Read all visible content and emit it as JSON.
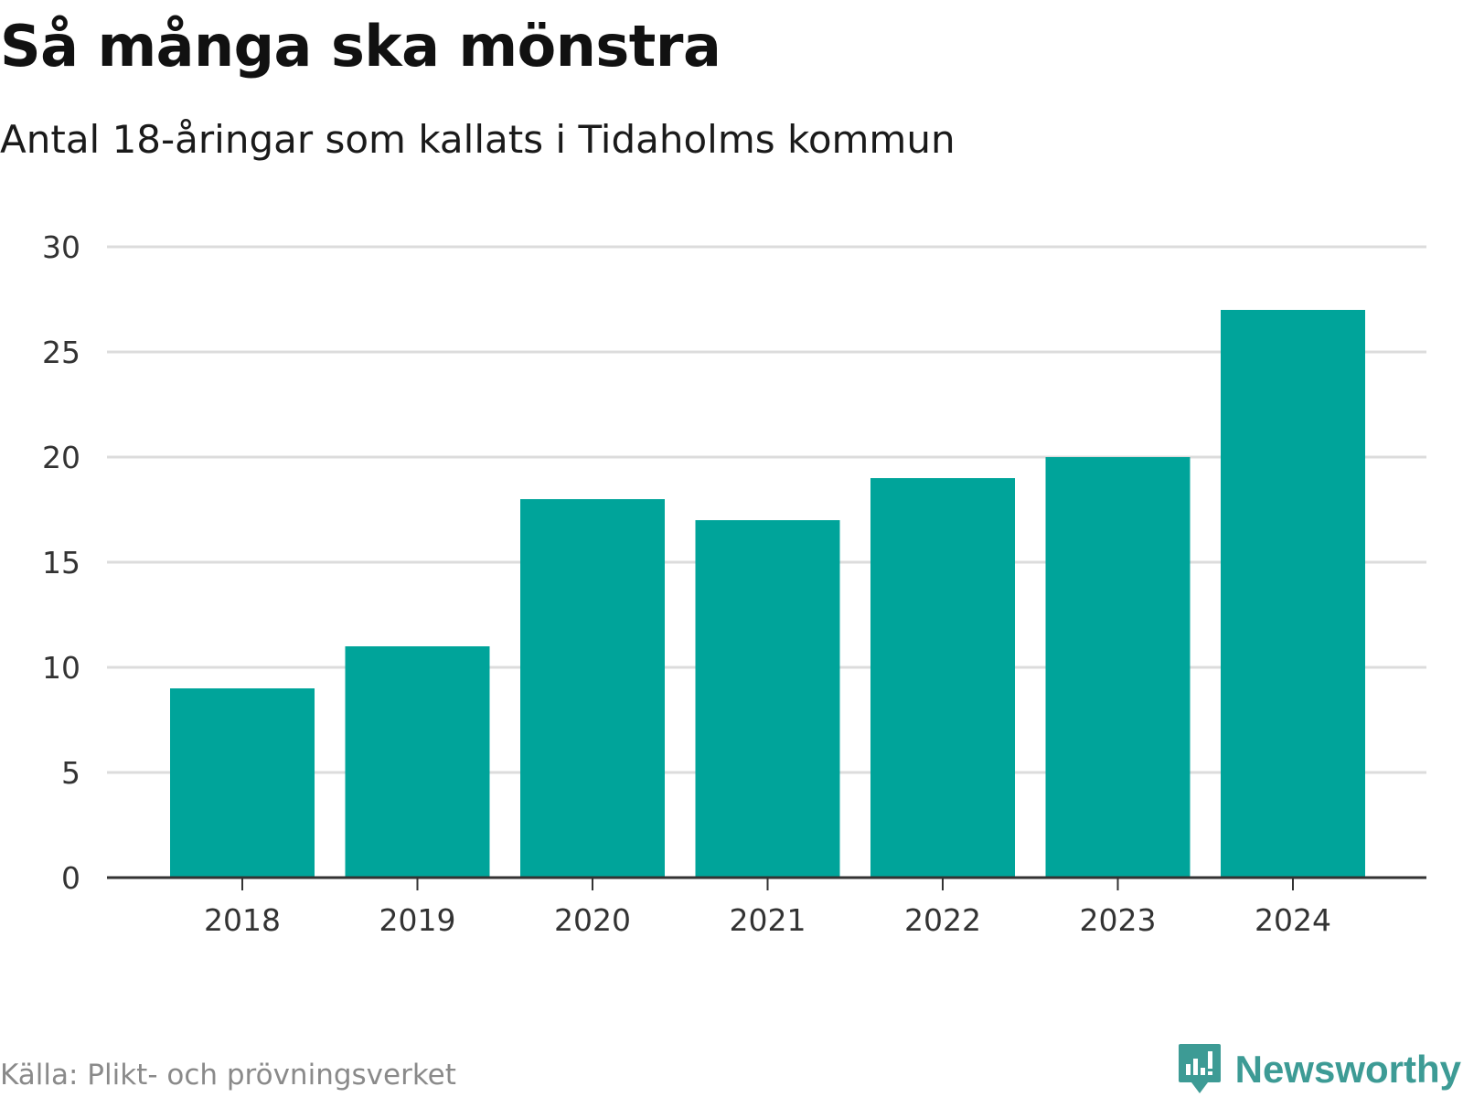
{
  "header": {
    "title": "Så många ska mönstra",
    "subtitle": "Antal 18-åringar som kallats i Tidaholms kommun"
  },
  "footer": {
    "source": "Källa: Plikt- och prövningsverket",
    "brand": "Newsworthy",
    "brand_icon": "bar-chart-speech-bubble-icon"
  },
  "colors": {
    "bar": "#00a49a",
    "grid": "#dcdcdc",
    "axis": "#333333",
    "brand": "#3d9b95"
  },
  "chart_data": {
    "type": "bar",
    "title": "Så många ska mönstra",
    "subtitle": "Antal 18-åringar som kallats i Tidaholms kommun",
    "categories": [
      "2018",
      "2019",
      "2020",
      "2021",
      "2022",
      "2023",
      "2024"
    ],
    "values": [
      9,
      11,
      18,
      17,
      19,
      20,
      27
    ],
    "yticks": [
      0,
      5,
      10,
      15,
      20,
      25,
      30
    ],
    "ylim": [
      0,
      30
    ],
    "xlabel": "",
    "ylabel": "",
    "grid": true,
    "legend": "none"
  }
}
